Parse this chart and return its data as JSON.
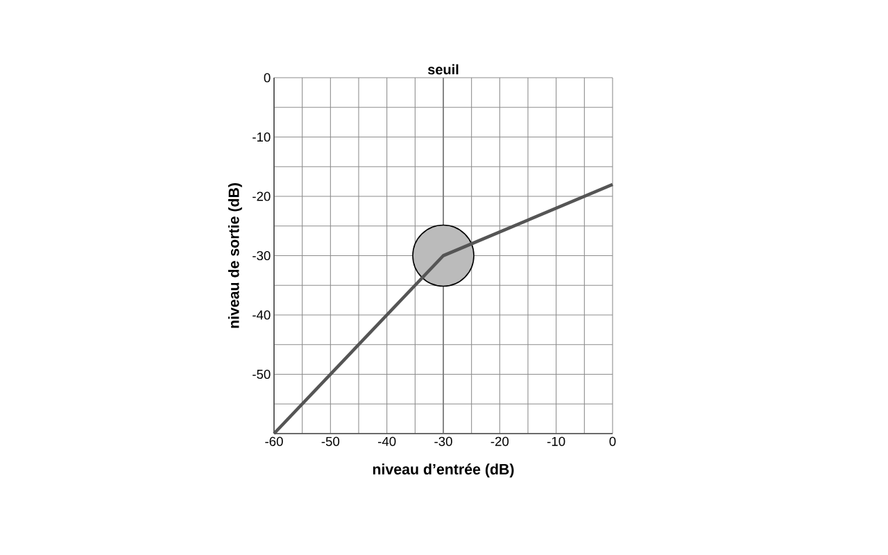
{
  "chart_data": {
    "type": "line",
    "xlabel": "niveau d’entrée (dB)",
    "ylabel": "niveau de sortie (dB)",
    "xlim": [
      -60,
      0
    ],
    "ylim": [
      -60,
      0
    ],
    "xticks": [
      -60,
      {
        "value": -55,
        "label": null
      },
      -50,
      {
        "value": -45,
        "label": null
      },
      -40,
      {
        "value": -35,
        "label": null
      },
      -30,
      {
        "value": -25,
        "label": null
      },
      -20,
      {
        "value": -15,
        "label": null
      },
      -10,
      {
        "value": -5,
        "label": null
      },
      0
    ],
    "yticks": [
      {
        "value": -60,
        "label": null
      },
      {
        "value": -55,
        "label": null
      },
      -50,
      {
        "value": -45,
        "label": null
      },
      -40,
      {
        "value": -35,
        "label": null
      },
      -30,
      {
        "value": -25,
        "label": null
      },
      -20,
      {
        "value": -15,
        "label": null
      },
      -10,
      {
        "value": -5,
        "label": null
      },
      0
    ],
    "grid": true,
    "series": [
      {
        "type": "scatter",
        "color": "#bbbbbb",
        "x": [
          -30
        ],
        "values": [
          -30
        ],
        "marker": "circle"
      },
      {
        "color": "#555555",
        "x": [
          -60,
          -30,
          0
        ],
        "values": [
          -60,
          -30,
          -18
        ],
        "marker": "none",
        "line_style": "solid"
      }
    ],
    "ref_lines": [
      {
        "axis": "x",
        "value": -30,
        "label": "seuil",
        "color": "#777777"
      }
    ]
  }
}
